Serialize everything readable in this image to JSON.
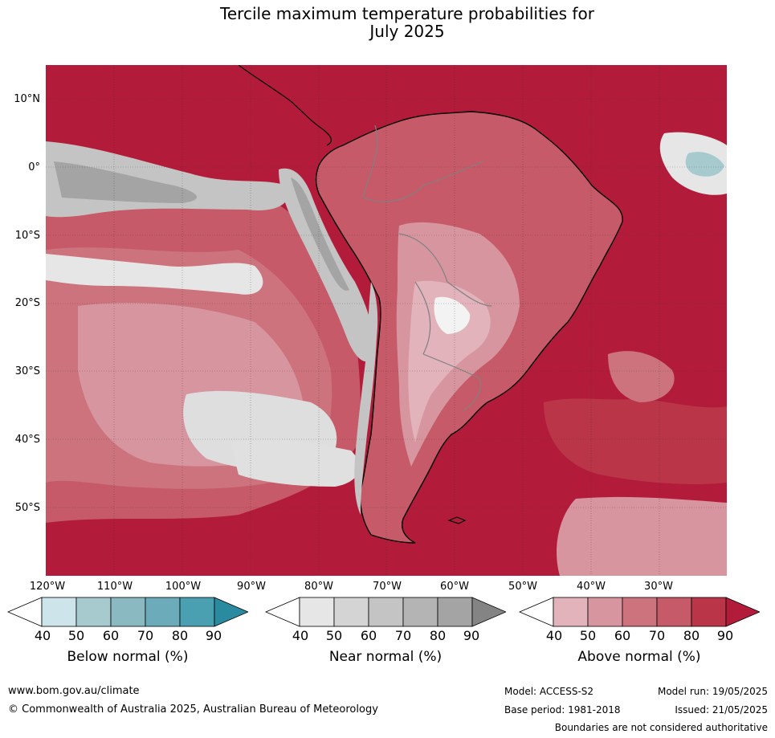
{
  "title_line1": "Tercile maximum temperature probabilities for",
  "title_line2": "July 2025",
  "lat_labels": [
    "10°N",
    "0°",
    "10°S",
    "20°S",
    "30°S",
    "40°S",
    "50°S"
  ],
  "lon_labels": [
    "120°W",
    "110°W",
    "100°W",
    "90°W",
    "80°W",
    "70°W",
    "60°W",
    "50°W",
    "40°W",
    "30°W"
  ],
  "colorbars": {
    "below": {
      "label": "Below normal (%)",
      "ticks": [
        "40",
        "50",
        "60",
        "70",
        "80",
        "90"
      ],
      "colors": [
        "#cde4ea",
        "#a7cacf",
        "#8ab9c1",
        "#6cabb9",
        "#4a9fb0",
        "#2a8aa0"
      ]
    },
    "near": {
      "label": "Near normal (%)",
      "ticks": [
        "40",
        "50",
        "60",
        "70",
        "80",
        "90"
      ],
      "colors": [
        "#e6e6e6",
        "#d4d4d4",
        "#c4c4c4",
        "#b4b4b4",
        "#a4a4a4",
        "#848484"
      ]
    },
    "above": {
      "label": "Above normal (%)",
      "ticks": [
        "40",
        "50",
        "60",
        "70",
        "80",
        "90"
      ],
      "colors": [
        "#e2b3bb",
        "#d7969f",
        "#cc737e",
        "#c65a68",
        "#b93547",
        "#b21c3a"
      ]
    }
  },
  "footer": {
    "website": "www.bom.gov.au/climate",
    "copyright": "© Commonwealth of Australia 2025, Australian Bureau of Meteorology",
    "model": "Model: ACCESS-S2",
    "model_run": "Model run: 19/05/2025",
    "base_period": "Base period: 1981-2018",
    "issued": "Issued: 21/05/2025",
    "disclaimer": "Boundaries are not considered authoritative"
  }
}
